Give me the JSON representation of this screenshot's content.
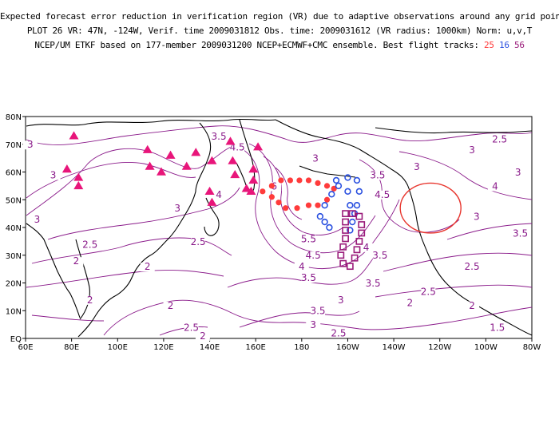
{
  "header": {
    "line1": "Expected forecast error reduction in verification region (VR) due to adaptive observations around any grid point.",
    "line2": "PLOT 26 VR: 47N, -124W, Verif. time 2009031812 Obs. time: 2009031612 (VR radius: 1000km) Norm: u,v,T",
    "line3_prefix": "NCEP/UM ETKF based on 177-member 2009031200 NCEP+ECMWF+CMC ensemble. Best flight tracks: ",
    "track_labels": [
      "25",
      "16",
      "56"
    ]
  },
  "colors": {
    "contour": "#8a1a8a",
    "coast": "#000000",
    "track_25": "#ff3b3b",
    "track_16": "#2a50e0",
    "track_56": "#9a1b7a",
    "triangles": "#e8157a",
    "vr_circle": "#e8362e"
  },
  "axes": {
    "lon_labels": [
      "60E",
      "80E",
      "100E",
      "120E",
      "140E",
      "160E",
      "180",
      "160W",
      "140W",
      "120W",
      "100W",
      "80W"
    ],
    "lat_labels": [
      "EQ",
      "10N",
      "20N",
      "30N",
      "40N",
      "50N",
      "60N",
      "70N",
      "80N"
    ]
  },
  "contour_labels": [
    {
      "text": "3.5",
      "lon": 144,
      "lat": 72
    },
    {
      "text": "4.5",
      "lon": 152,
      "lat": 68
    },
    {
      "text": "3",
      "lon": 62,
      "lat": 69
    },
    {
      "text": "3",
      "lon": 72,
      "lat": 58
    },
    {
      "text": "3",
      "lon": 186,
      "lat": 64
    },
    {
      "text": "3",
      "lon": 230,
      "lat": 61
    },
    {
      "text": "3",
      "lon": 254,
      "lat": 67
    },
    {
      "text": "3",
      "lon": 274,
      "lat": 59
    },
    {
      "text": "2.5",
      "lon": 266,
      "lat": 71
    },
    {
      "text": "4",
      "lon": 264,
      "lat": 54
    },
    {
      "text": "3",
      "lon": 256,
      "lat": 43
    },
    {
      "text": "3.5",
      "lon": 275,
      "lat": 37
    },
    {
      "text": "4.5",
      "lon": 215,
      "lat": 51
    },
    {
      "text": "3.5",
      "lon": 213,
      "lat": 58
    },
    {
      "text": "6",
      "lon": 168,
      "lat": 54
    },
    {
      "text": "4",
      "lon": 144,
      "lat": 51
    },
    {
      "text": "3",
      "lon": 126,
      "lat": 46
    },
    {
      "text": "3",
      "lon": 65,
      "lat": 42
    },
    {
      "text": "2.5",
      "lon": 88,
      "lat": 33
    },
    {
      "text": "2",
      "lon": 82,
      "lat": 27
    },
    {
      "text": "2.5",
      "lon": 135,
      "lat": 34
    },
    {
      "text": "5.5",
      "lon": 183,
      "lat": 35
    },
    {
      "text": "4.5",
      "lon": 185,
      "lat": 29
    },
    {
      "text": "4",
      "lon": 180,
      "lat": 25
    },
    {
      "text": "3.5",
      "lon": 183,
      "lat": 21
    },
    {
      "text": "4",
      "lon": 208,
      "lat": 32
    },
    {
      "text": "3.5",
      "lon": 214,
      "lat": 29
    },
    {
      "text": "3.5",
      "lon": 211,
      "lat": 19
    },
    {
      "text": "3",
      "lon": 197,
      "lat": 13
    },
    {
      "text": "3.5",
      "lon": 187,
      "lat": 9
    },
    {
      "text": "3",
      "lon": 185,
      "lat": 4
    },
    {
      "text": "2.5",
      "lon": 196,
      "lat": 1
    },
    {
      "text": "2.5",
      "lon": 254,
      "lat": 25
    },
    {
      "text": "2.5",
      "lon": 235,
      "lat": 16
    },
    {
      "text": "2",
      "lon": 227,
      "lat": 12
    },
    {
      "text": "2",
      "lon": 254,
      "lat": 11
    },
    {
      "text": "1.5",
      "lon": 265,
      "lat": 3
    },
    {
      "text": "2",
      "lon": 88,
      "lat": 13
    },
    {
      "text": "2",
      "lon": 123,
      "lat": 11
    },
    {
      "text": "2.5",
      "lon": 132,
      "lat": 3
    },
    {
      "text": "2",
      "lon": 137,
      "lat": 0
    },
    {
      "text": "2",
      "lon": 113,
      "lat": 25
    }
  ],
  "track_25": [
    [
      163,
      53
    ],
    [
      167,
      55
    ],
    [
      171,
      57
    ],
    [
      175,
      57
    ],
    [
      179,
      57
    ],
    [
      183,
      57
    ],
    [
      187,
      56
    ],
    [
      191,
      55
    ],
    [
      194,
      54
    ],
    [
      191,
      50
    ],
    [
      187,
      48
    ],
    [
      183,
      48
    ],
    [
      178,
      47
    ],
    [
      173,
      47
    ],
    [
      170,
      49
    ],
    [
      167,
      51
    ]
  ],
  "track_16": [
    [
      195,
      57
    ],
    [
      200,
      58
    ],
    [
      204,
      57
    ],
    [
      205,
      53
    ],
    [
      204,
      48
    ],
    [
      203,
      45
    ],
    [
      202,
      42
    ],
    [
      201,
      39
    ],
    [
      192,
      40
    ],
    [
      190,
      42
    ],
    [
      188,
      44
    ],
    [
      190,
      48
    ],
    [
      193,
      52
    ],
    [
      196,
      55
    ],
    [
      200,
      53
    ],
    [
      201,
      48
    ]
  ],
  "track_56": [
    [
      199,
      45
    ],
    [
      202,
      45
    ],
    [
      205,
      44
    ],
    [
      206,
      41
    ],
    [
      206,
      38
    ],
    [
      205,
      35
    ],
    [
      204,
      32
    ],
    [
      203,
      29
    ],
    [
      201,
      26
    ],
    [
      198,
      27
    ],
    [
      197,
      30
    ],
    [
      198,
      33
    ],
    [
      199,
      36
    ],
    [
      199,
      39
    ],
    [
      199,
      42
    ]
  ],
  "triangles": [
    [
      81,
      73
    ],
    [
      78,
      61
    ],
    [
      83,
      58
    ],
    [
      83,
      55
    ],
    [
      113,
      68
    ],
    [
      114,
      62
    ],
    [
      119,
      60
    ],
    [
      123,
      66
    ],
    [
      130,
      62
    ],
    [
      134,
      67
    ],
    [
      141,
      64
    ],
    [
      140,
      53
    ],
    [
      141,
      49
    ],
    [
      149,
      71
    ],
    [
      150,
      64
    ],
    [
      151,
      59
    ],
    [
      156,
      54
    ],
    [
      159,
      61
    ],
    [
      161,
      69
    ],
    [
      159,
      57
    ],
    [
      158,
      53
    ]
  ],
  "vr_circle": {
    "lon": -124,
    "lat": 47
  }
}
